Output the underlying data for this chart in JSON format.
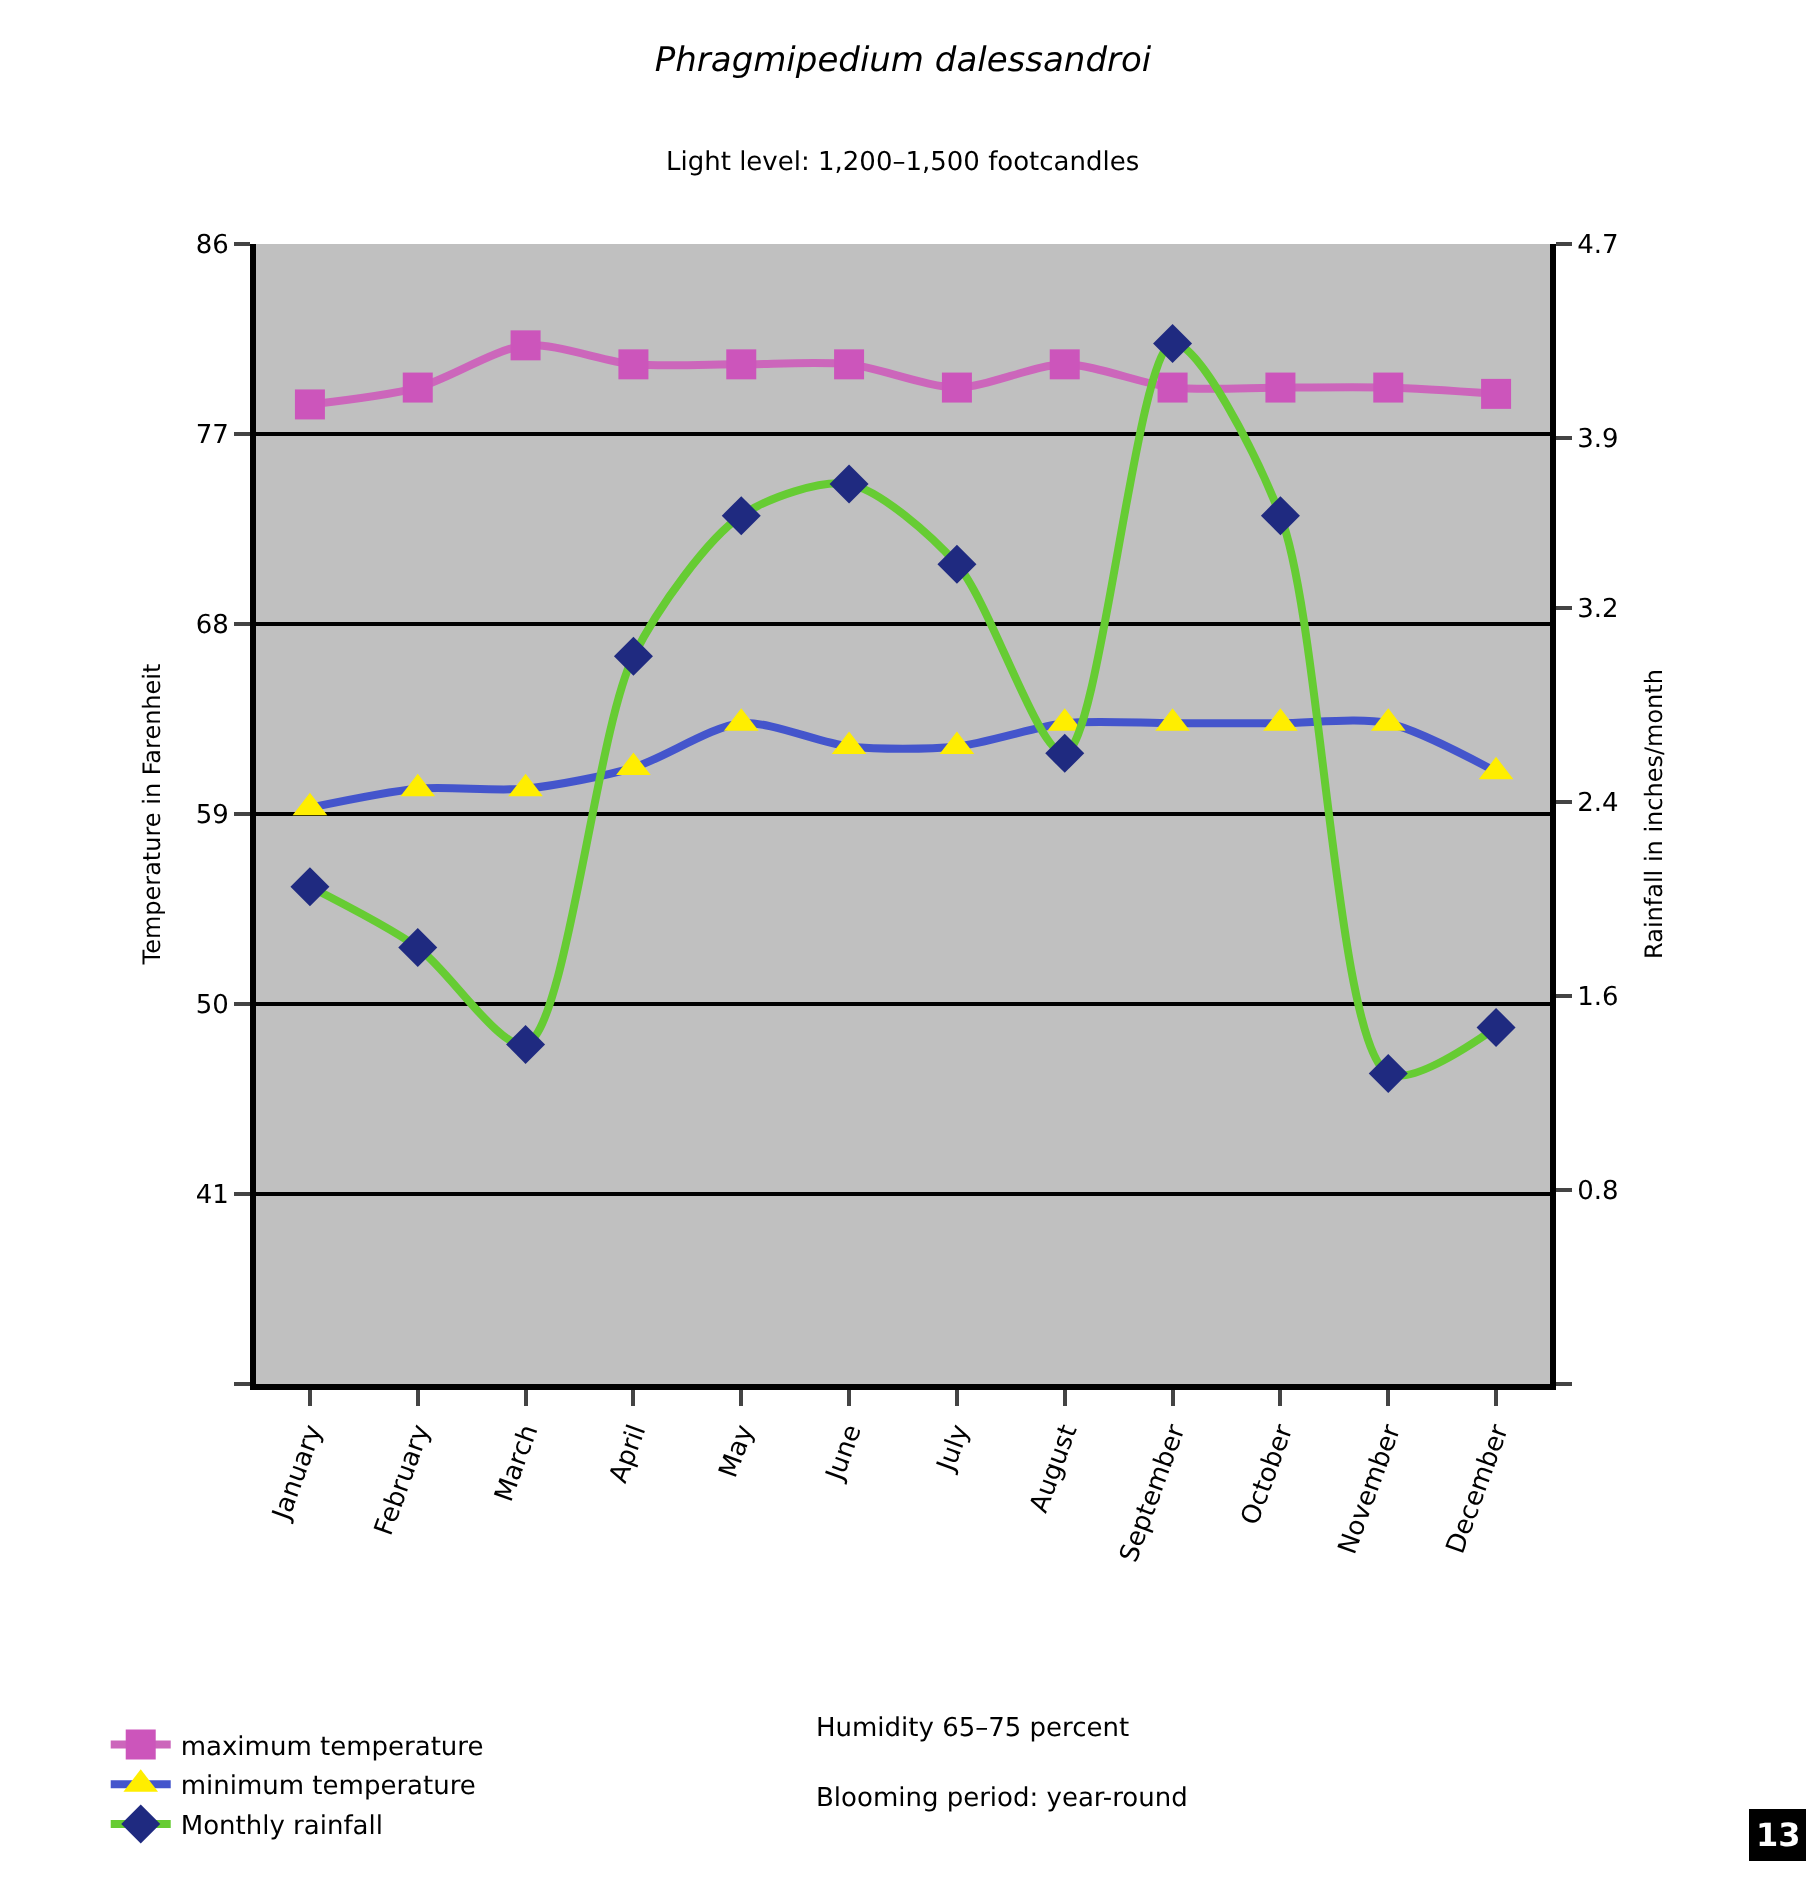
{
  "chart_data": {
    "type": "line",
    "title": "Phragmipedium dalessandroi",
    "subtitle": "Light level: 1,200–1,500 footcandles",
    "ylabel": "Temperature in Farenheit",
    "y2label": "Rainfall in inches/month",
    "categories": [
      "January",
      "February",
      "March",
      "April",
      "May",
      "June",
      "July",
      "August",
      "September",
      "October",
      "November",
      "December"
    ],
    "series": [
      {
        "name": "maximum temperature",
        "color": "#cc66bb",
        "marker": "square",
        "colors": [
          "#cc55bb",
          "#cc55bb",
          "#cc55bb",
          "#cc55bb",
          "#cc55bb",
          "#cc55bb",
          "#cc55bb",
          "#cc55bb",
          "#cc55bb",
          "#cc55bb",
          "#cc55bb",
          "#cc55bb"
        ],
        "values": [
          78.4,
          79.2,
          81.2,
          80.3,
          80.3,
          80.3,
          79.2,
          80.3,
          79.2,
          79.2,
          79.2,
          78.9
        ]
      },
      {
        "name": "minimum temperature",
        "color": "#4455cc",
        "marker": "triangle",
        "colors": [
          "#ffee00",
          "#ffee00",
          "#ffee00",
          "#ffee00",
          "#ffee00",
          "#ffee00",
          "#ffee00",
          "#ffee00",
          "#ffee00",
          "#ffee00",
          "#ffee00",
          "#ffee00"
        ],
        "values": [
          59.3,
          60.2,
          60.2,
          61.2,
          63.3,
          62.2,
          62.2,
          63.3,
          63.3,
          63.3,
          63.3,
          61.0
        ]
      },
      {
        "name": "Monthly rainfall",
        "color": "#66cc33",
        "marker": "diamond",
        "axis": "y2",
        "colors": [
          "#1f2a80",
          "#1f2a80",
          "#1f2a80",
          "#1f2a80",
          "#1f2a80",
          "#1f2a80",
          "#1f2a80",
          "#1f2a80",
          "#1f2a80",
          "#1f2a80",
          "#1f2a80",
          "#1f2a80"
        ],
        "values": [
          2.05,
          1.8,
          1.4,
          3.0,
          3.58,
          3.71,
          3.38,
          2.6,
          4.29,
          3.58,
          1.28,
          1.47
        ]
      }
    ],
    "ylim": [
      32,
      86
    ],
    "yticks": [
      {
        "value": 32,
        "label": null
      },
      41,
      50,
      59,
      68,
      77,
      86
    ],
    "y2lim": [
      0,
      4.7
    ],
    "y2ticks": [
      {
        "value": 0,
        "label": null
      },
      0.8,
      1.6,
      2.4,
      3.2,
      3.9,
      4.7
    ],
    "grid": "y",
    "legend": "bottom left",
    "annotations": [
      "Humidity 65–75 percent",
      "Blooming period: year-round",
      "13"
    ]
  }
}
